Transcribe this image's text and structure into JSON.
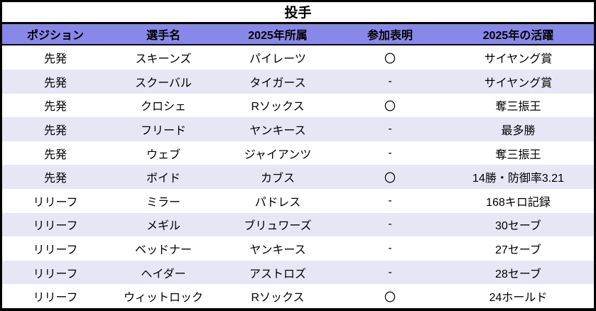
{
  "table": {
    "title": "投手",
    "columns": [
      "ポジション",
      "選手名",
      "2025年所属",
      "参加表明",
      "2025年の活躍"
    ],
    "rows": [
      [
        "先発",
        "スキーンズ",
        "パイレーツ",
        "〇",
        "サイヤング賞"
      ],
      [
        "先発",
        "スクーバル",
        "タイガース",
        "-",
        "サイヤング賞"
      ],
      [
        "先発",
        "クロシェ",
        "Rソックス",
        "〇",
        "奪三振王"
      ],
      [
        "先発",
        "フリード",
        "ヤンキース",
        "-",
        "最多勝"
      ],
      [
        "先発",
        "ウェブ",
        "ジャイアンツ",
        "-",
        "奪三振王"
      ],
      [
        "先発",
        "ボイド",
        "カブス",
        "〇",
        "14勝・防御率3.21"
      ],
      [
        "リリーフ",
        "ミラー",
        "パドレス",
        "-",
        "168キロ記録"
      ],
      [
        "リリーフ",
        "メギル",
        "ブリュワーズ",
        "-",
        "30セーブ"
      ],
      [
        "リリーフ",
        "ベッドナー",
        "ヤンキース",
        "-",
        "27セーブ"
      ],
      [
        "リリーフ",
        "ヘイダー",
        "アストロズ",
        "-",
        "28セーブ"
      ],
      [
        "リリーフ",
        "ウィットロック",
        "Rソックス",
        "〇",
        "24ホールド"
      ]
    ],
    "colors": {
      "border": "#000000",
      "header_bg": "#8888E8",
      "row_alt_bg": "#E6E6F5",
      "row_bg": "#FFFFFF",
      "text": "#000000"
    }
  }
}
